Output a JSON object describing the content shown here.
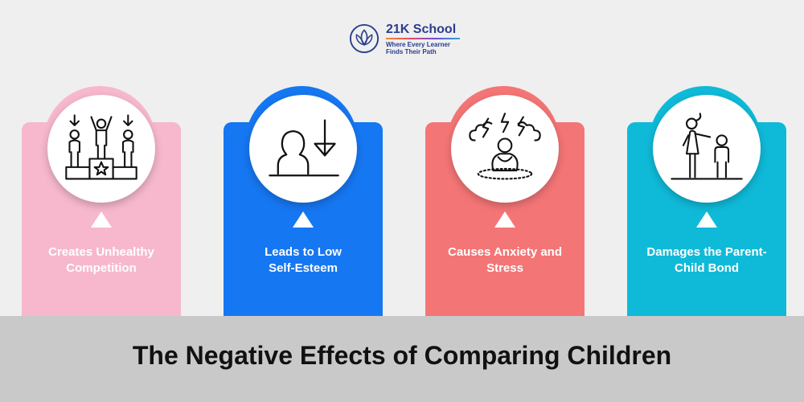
{
  "brand": {
    "name": "21K School",
    "tagline_line1": "Where Every Learner",
    "tagline_line2": "Finds Their Path",
    "color": "#2b3d8f"
  },
  "cards": [
    {
      "label": "Creates Unhealthy\nCompetition",
      "icon": "podium-competition-icon",
      "color": "#f7b8cd"
    },
    {
      "label": "Leads to Low\nSelf-Esteem",
      "icon": "low-self-esteem-icon",
      "color": "#1677f2"
    },
    {
      "label": "Causes Anxiety and\nStress",
      "icon": "anxiety-stress-icon",
      "color": "#f47576"
    },
    {
      "label": "Damages the Parent-\nChild Bond",
      "icon": "parent-child-icon",
      "color": "#0fbad8"
    }
  ],
  "headline": "The Negative Effects of Comparing Children"
}
